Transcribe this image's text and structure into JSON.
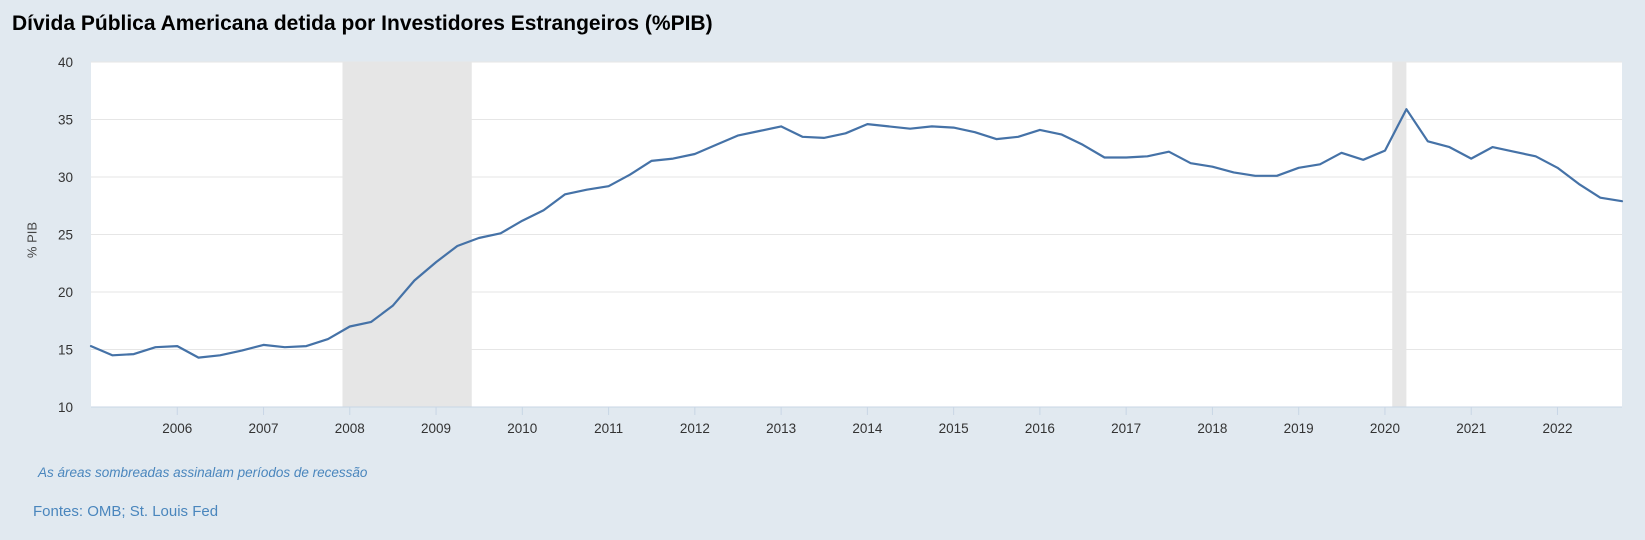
{
  "chart_data": {
    "type": "line",
    "title": "Dívida Pública Americana detida por Investidores Estrangeiros (%PIB)",
    "ylabel": "% PIB",
    "xlabel": "",
    "ylim": [
      10,
      40
    ],
    "y_ticks": [
      10,
      15,
      20,
      25,
      30,
      35,
      40
    ],
    "x_ticks": [
      "2006",
      "2007",
      "2008",
      "2009",
      "2010",
      "2011",
      "2012",
      "2013",
      "2014",
      "2015",
      "2016",
      "2017",
      "2018",
      "2019",
      "2020",
      "2021",
      "2022"
    ],
    "xlim": [
      "2005-01-01",
      "2022-10-01"
    ],
    "grid": true,
    "recessions": [
      {
        "start": "2007-12-01",
        "end": "2009-06-01"
      },
      {
        "start": "2020-02-01",
        "end": "2020-04-01"
      }
    ],
    "series": [
      {
        "color": "#4572a7",
        "x": [
          "2005-01-01",
          "2005-04-01",
          "2005-07-01",
          "2005-10-01",
          "2006-01-01",
          "2006-04-01",
          "2006-07-01",
          "2006-10-01",
          "2007-01-01",
          "2007-04-01",
          "2007-07-01",
          "2007-10-01",
          "2008-01-01",
          "2008-04-01",
          "2008-07-01",
          "2008-10-01",
          "2009-01-01",
          "2009-04-01",
          "2009-07-01",
          "2009-10-01",
          "2010-01-01",
          "2010-04-01",
          "2010-07-01",
          "2010-10-01",
          "2011-01-01",
          "2011-04-01",
          "2011-07-01",
          "2011-10-01",
          "2012-01-01",
          "2012-04-01",
          "2012-07-01",
          "2012-10-01",
          "2013-01-01",
          "2013-04-01",
          "2013-07-01",
          "2013-10-01",
          "2014-01-01",
          "2014-04-01",
          "2014-07-01",
          "2014-10-01",
          "2015-01-01",
          "2015-04-01",
          "2015-07-01",
          "2015-10-01",
          "2016-01-01",
          "2016-04-01",
          "2016-07-01",
          "2016-10-01",
          "2017-01-01",
          "2017-04-01",
          "2017-07-01",
          "2017-10-01",
          "2018-01-01",
          "2018-04-01",
          "2018-07-01",
          "2018-10-01",
          "2019-01-01",
          "2019-04-01",
          "2019-07-01",
          "2019-10-01",
          "2020-01-01",
          "2020-04-01",
          "2020-07-01",
          "2020-10-01",
          "2021-01-01",
          "2021-04-01",
          "2021-07-01",
          "2021-10-01",
          "2022-01-01",
          "2022-04-01",
          "2022-07-01",
          "2022-10-01"
        ],
        "values": [
          15.3,
          14.5,
          14.6,
          15.2,
          15.3,
          14.3,
          14.5,
          14.9,
          15.4,
          15.2,
          15.3,
          15.9,
          17.0,
          17.4,
          18.8,
          21.0,
          22.6,
          24.0,
          24.7,
          25.1,
          26.2,
          27.1,
          28.5,
          28.9,
          29.2,
          30.2,
          31.4,
          31.6,
          32.0,
          32.8,
          33.6,
          34.0,
          34.4,
          33.5,
          33.4,
          33.8,
          34.6,
          34.4,
          34.2,
          34.4,
          34.3,
          33.9,
          33.3,
          33.5,
          34.1,
          33.7,
          32.8,
          31.7,
          31.7,
          31.8,
          32.2,
          31.2,
          30.9,
          30.4,
          30.1,
          30.1,
          30.8,
          31.1,
          32.1,
          31.5,
          32.3,
          35.9,
          33.1,
          32.6,
          31.6,
          32.6,
          32.2,
          31.8,
          30.8,
          29.4,
          28.2,
          27.9
        ]
      }
    ]
  },
  "notes": {
    "recession": "As áreas sombreadas assinalam períodos de recessão",
    "source": "Fontes: OMB; St. Louis Fed"
  }
}
